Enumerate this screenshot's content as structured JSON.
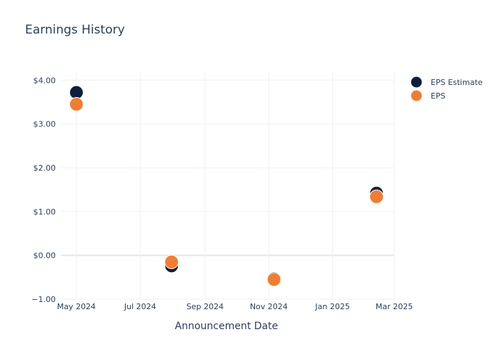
{
  "chart_data": {
    "type": "scatter",
    "title": "Earnings History",
    "xlabel": "Announcement Date",
    "ylabel": "",
    "ylim": [
      -1,
      4.2
    ],
    "xlim": [
      "2024-04-16",
      "2025-03-01"
    ],
    "x_ticks": [
      {
        "date": "2024-05-01",
        "label": "May 2024"
      },
      {
        "date": "2024-07-01",
        "label": "Jul 2024"
      },
      {
        "date": "2024-09-01",
        "label": "Sep 2024"
      },
      {
        "date": "2024-11-01",
        "label": "Nov 2024"
      },
      {
        "date": "2025-01-01",
        "label": "Jan 2025"
      },
      {
        "date": "2025-03-01",
        "label": "Mar 2025"
      }
    ],
    "y_ticks": [
      {
        "value": -1,
        "label": "−1.00"
      },
      {
        "value": 0,
        "label": "$0.00"
      },
      {
        "value": 1,
        "label": "$1.00"
      },
      {
        "value": 2,
        "label": "$2.00"
      },
      {
        "value": 3,
        "label": "$3.00"
      },
      {
        "value": 4,
        "label": "$4.00"
      }
    ],
    "grid": true,
    "legend_position": "top-right",
    "series": [
      {
        "name": "EPS Estimate",
        "color": "#0b1f3f",
        "points": [
          {
            "x": "2024-05-01",
            "y": 3.72
          },
          {
            "x": "2024-07-31",
            "y": -0.24
          },
          {
            "x": "2024-11-06",
            "y": -0.53
          },
          {
            "x": "2025-02-12",
            "y": 1.42
          }
        ]
      },
      {
        "name": "EPS",
        "color": "#f47c30",
        "points": [
          {
            "x": "2024-05-01",
            "y": 3.45
          },
          {
            "x": "2024-07-31",
            "y": -0.15
          },
          {
            "x": "2024-11-06",
            "y": -0.55
          },
          {
            "x": "2025-02-12",
            "y": 1.34
          }
        ]
      }
    ]
  }
}
